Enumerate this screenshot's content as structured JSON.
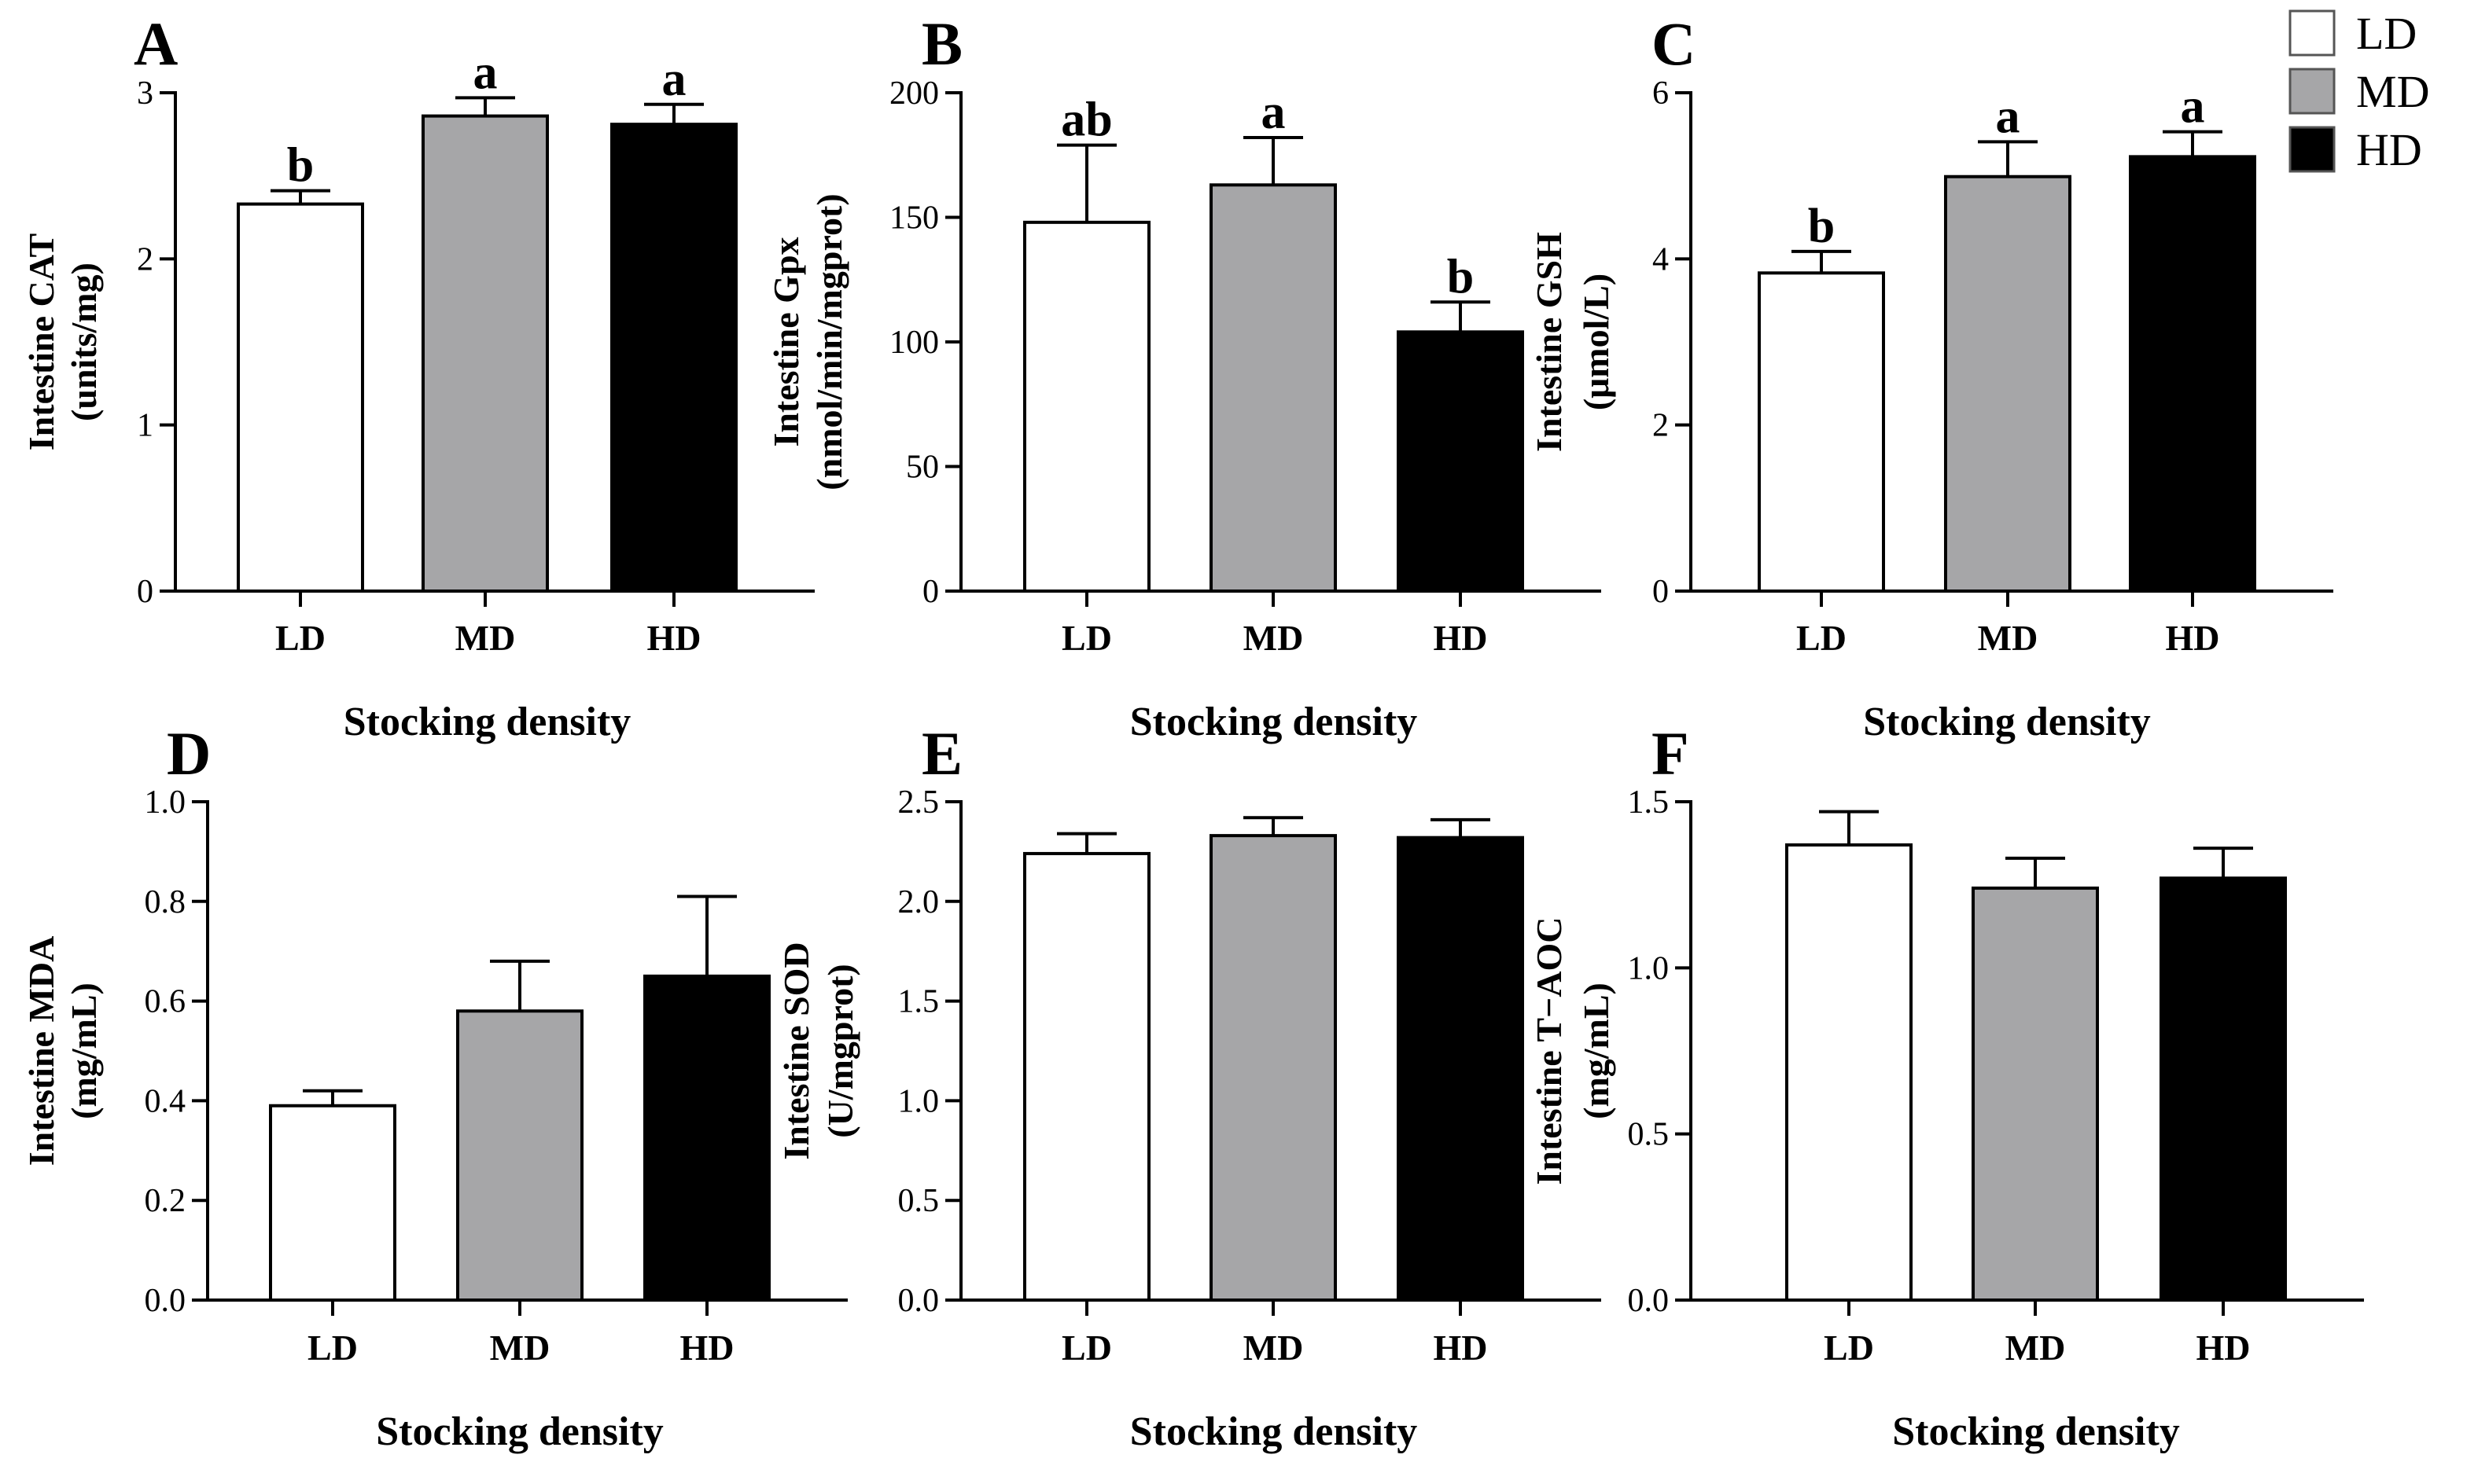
{
  "colors": {
    "LD": "#ffffff",
    "MD": "#a6a6a8",
    "HD": "#000000",
    "outline": "#000000"
  },
  "legend": {
    "entries": [
      "LD",
      "MD",
      "HD"
    ]
  },
  "chart_data": [
    {
      "panel": "A",
      "type": "bar",
      "categories": [
        "LD",
        "MD",
        "HD"
      ],
      "values": [
        2.33,
        2.86,
        2.81
      ],
      "errors": [
        0.08,
        0.11,
        0.12
      ],
      "sig": [
        "b",
        "a",
        "a"
      ],
      "ylabel_line1": "Intestine  CAT",
      "ylabel_line2": "(units/mg)",
      "xlabel": "Stocking density",
      "ylim": [
        0,
        3
      ],
      "yticks": [
        "0",
        "1",
        "2",
        "3"
      ]
    },
    {
      "panel": "B",
      "type": "bar",
      "categories": [
        "LD",
        "MD",
        "HD"
      ],
      "values": [
        148,
        163,
        104
      ],
      "errors": [
        31,
        19,
        12
      ],
      "sig": [
        "ab",
        "a",
        "b"
      ],
      "ylabel_line1": "Intestine Gpx",
      "ylabel_line2": "(nmol/min/mgprot)",
      "xlabel": "Stocking density",
      "ylim": [
        0,
        200
      ],
      "yticks": [
        "0",
        "50",
        "100",
        "150",
        "200"
      ]
    },
    {
      "panel": "C",
      "type": "bar",
      "categories": [
        "LD",
        "MD",
        "HD"
      ],
      "values": [
        3.83,
        4.99,
        5.23
      ],
      "errors": [
        0.26,
        0.42,
        0.3
      ],
      "sig": [
        "b",
        "a",
        "a"
      ],
      "ylabel_line1": "Intestine  GSH",
      "ylabel_line2": "(μmol/L)",
      "xlabel": "Stocking density",
      "ylim": [
        0,
        6
      ],
      "yticks": [
        "0",
        "2",
        "4",
        "6"
      ]
    },
    {
      "panel": "D",
      "type": "bar",
      "categories": [
        "LD",
        "MD",
        "HD"
      ],
      "values": [
        0.39,
        0.58,
        0.65
      ],
      "errors": [
        0.03,
        0.1,
        0.16
      ],
      "sig": [
        "",
        "",
        ""
      ],
      "ylabel_line1": "Intestine MDA",
      "ylabel_line2": "(mg/mL)",
      "xlabel": "Stocking density",
      "ylim": [
        0,
        1
      ],
      "yticks": [
        "0.0",
        "0.2",
        "0.4",
        "0.6",
        "0.8",
        "1.0"
      ]
    },
    {
      "panel": "E",
      "type": "bar",
      "categories": [
        "LD",
        "MD",
        "HD"
      ],
      "values": [
        2.24,
        2.33,
        2.32
      ],
      "errors": [
        0.1,
        0.09,
        0.09
      ],
      "sig": [
        "",
        "",
        ""
      ],
      "ylabel_line1": "Intestine SOD",
      "ylabel_line2": "(U/mgprot)",
      "xlabel": "Stocking density",
      "ylim": [
        0,
        2.5
      ],
      "yticks": [
        "0.0",
        "0.5",
        "1.0",
        "1.5",
        "2.0",
        "2.5"
      ]
    },
    {
      "panel": "F",
      "type": "bar",
      "categories": [
        "LD",
        "MD",
        "HD"
      ],
      "values": [
        1.37,
        1.24,
        1.27
      ],
      "errors": [
        0.1,
        0.09,
        0.09
      ],
      "sig": [
        "",
        "",
        ""
      ],
      "ylabel_line1": "Intestine T−AOC",
      "ylabel_line2": "(mg/mL)",
      "xlabel": "Stocking density",
      "ylim": [
        0,
        1.5
      ],
      "yticks": [
        "0.0",
        "0.5",
        "1.0",
        "1.5"
      ]
    }
  ]
}
